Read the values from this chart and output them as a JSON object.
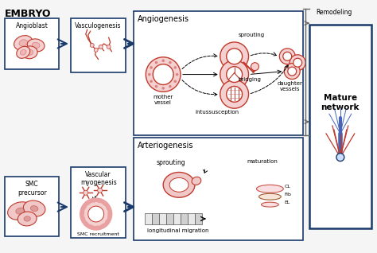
{
  "title": "EMBRYO",
  "bg_color": "#f5f5f5",
  "box_color_dark": "#1a3a6b",
  "red_color": "#c0392b",
  "red_light": "#e8a0a0",
  "red_fill": "#f5d0d0",
  "gray_color": "#666666",
  "arrow_color": "#1a3a6b",
  "top_left_label": "Angioblast",
  "top_mid_label": "Vasculogenesis",
  "top_right_box_label": "Angiogenesis",
  "bot_left_label": "SMC\nprecursor",
  "bot_mid_label": "Vascular\nmyogenesis",
  "bot_mid_sub": "SMC recruitment",
  "bot_right_box_label": "Arteriogenesis",
  "mature_label": "Mature\nnetwork",
  "remodeling_label": "Remodeling",
  "sprouting_label": "sprouting",
  "bridging_label": "bridging",
  "intussus_label": "intussusception",
  "mother_label": "mother\nvessel",
  "daughter_label": "daughter\nvessels",
  "arterio_sprout_label": "sprouting",
  "longmig_label": "longitudinal migration",
  "maturation_label": "maturation",
  "cl_label": "CL",
  "fib_label": "Fib",
  "el_label": "EL"
}
